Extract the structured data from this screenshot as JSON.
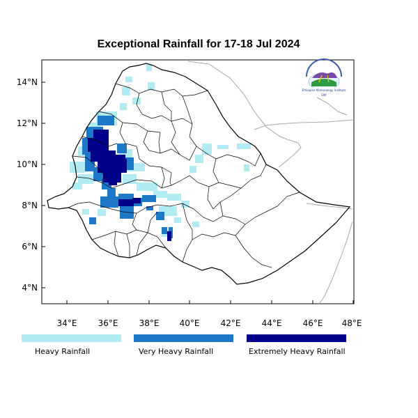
{
  "title": "Exceptional Rainfall for 17-18 Jul 2024",
  "axes": {
    "x_ticks": [
      "34°E",
      "36°E",
      "38°E",
      "40°E",
      "42°E",
      "44°E",
      "46°E",
      "48°E"
    ],
    "y_ticks": [
      "14°N",
      "12°N",
      "10°N",
      "8°N",
      "6°N",
      "4°N"
    ]
  },
  "logo": {
    "text": "Ethiopian Meteorology Institute"
  },
  "legend": [
    {
      "label": "Heavy Rainfall",
      "color": "#b2ebf2"
    },
    {
      "label": "Very Heavy Rainfall",
      "color": "#1e78c8"
    },
    {
      "label": "Extremely Heavy Rainfall",
      "color": "#00008b"
    }
  ],
  "colors": {
    "heavy": "#b2ebf2",
    "very_heavy": "#1e78c8",
    "extreme": "#00008b",
    "border": "#000000",
    "neighbor_border": "#a0a0a0"
  }
}
